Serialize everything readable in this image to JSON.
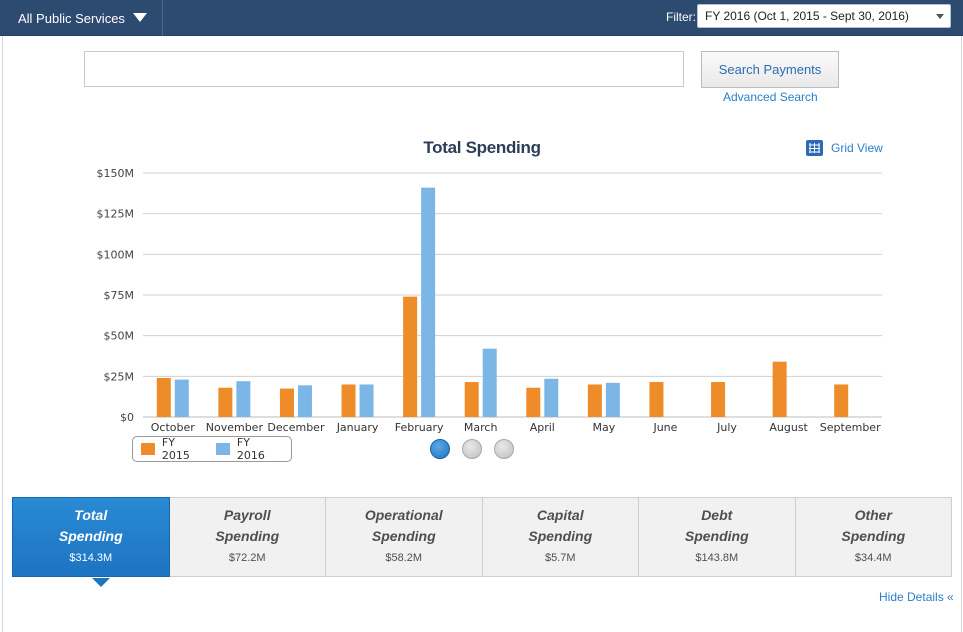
{
  "topbar": {
    "service_label": "All Public Services",
    "filter_label": "Filter:",
    "filter_value": "FY 2016 (Oct 1, 2015 - Sept 30, 2016)"
  },
  "search": {
    "placeholder": "",
    "button_label": "Search Payments",
    "advanced_label": "Advanced Search"
  },
  "chart_header": {
    "title": "Total Spending",
    "grid_view_label": "Grid View"
  },
  "legend": [
    {
      "label": "FY 2015",
      "color": "#ee8c2a"
    },
    {
      "label": "FY 2016",
      "color": "#7cb6e6"
    }
  ],
  "chart_data": {
    "type": "bar",
    "title": "Total Spending",
    "xlabel": "",
    "ylabel": "",
    "ylim": [
      0,
      150
    ],
    "yticks": [
      0,
      25,
      50,
      75,
      100,
      125,
      150
    ],
    "ytick_labels": [
      "$0",
      "$25M",
      "$50M",
      "$75M",
      "$100M",
      "$125M",
      "$150M"
    ],
    "grid": true,
    "legend_position": "bottom-left",
    "categories": [
      "October",
      "November",
      "December",
      "January",
      "February",
      "March",
      "April",
      "May",
      "June",
      "July",
      "August",
      "September"
    ],
    "series": [
      {
        "name": "FY 2015",
        "color": "#ee8c2a",
        "values": [
          24,
          18,
          17.5,
          20,
          74,
          21.5,
          18,
          20,
          21.5,
          21.5,
          34,
          20
        ]
      },
      {
        "name": "FY 2016",
        "color": "#7cb6e6",
        "values": [
          23,
          22,
          19.5,
          20,
          141,
          42,
          23.5,
          21,
          null,
          null,
          null,
          null
        ]
      }
    ]
  },
  "pager": {
    "pages": 3,
    "active": 1
  },
  "tabs": [
    {
      "line1": "Total",
      "line2": "Spending",
      "amount": "$314.3M",
      "active": true
    },
    {
      "line1": "Payroll",
      "line2": "Spending",
      "amount": "$72.2M",
      "active": false
    },
    {
      "line1": "Operational",
      "line2": "Spending",
      "amount": "$58.2M",
      "active": false
    },
    {
      "line1": "Capital",
      "line2": "Spending",
      "amount": "$5.7M",
      "active": false
    },
    {
      "line1": "Debt",
      "line2": "Spending",
      "amount": "$143.8M",
      "active": false
    },
    {
      "line1": "Other",
      "line2": "Spending",
      "amount": "$34.4M",
      "active": false
    }
  ],
  "hide_details_label": "Hide Details «"
}
